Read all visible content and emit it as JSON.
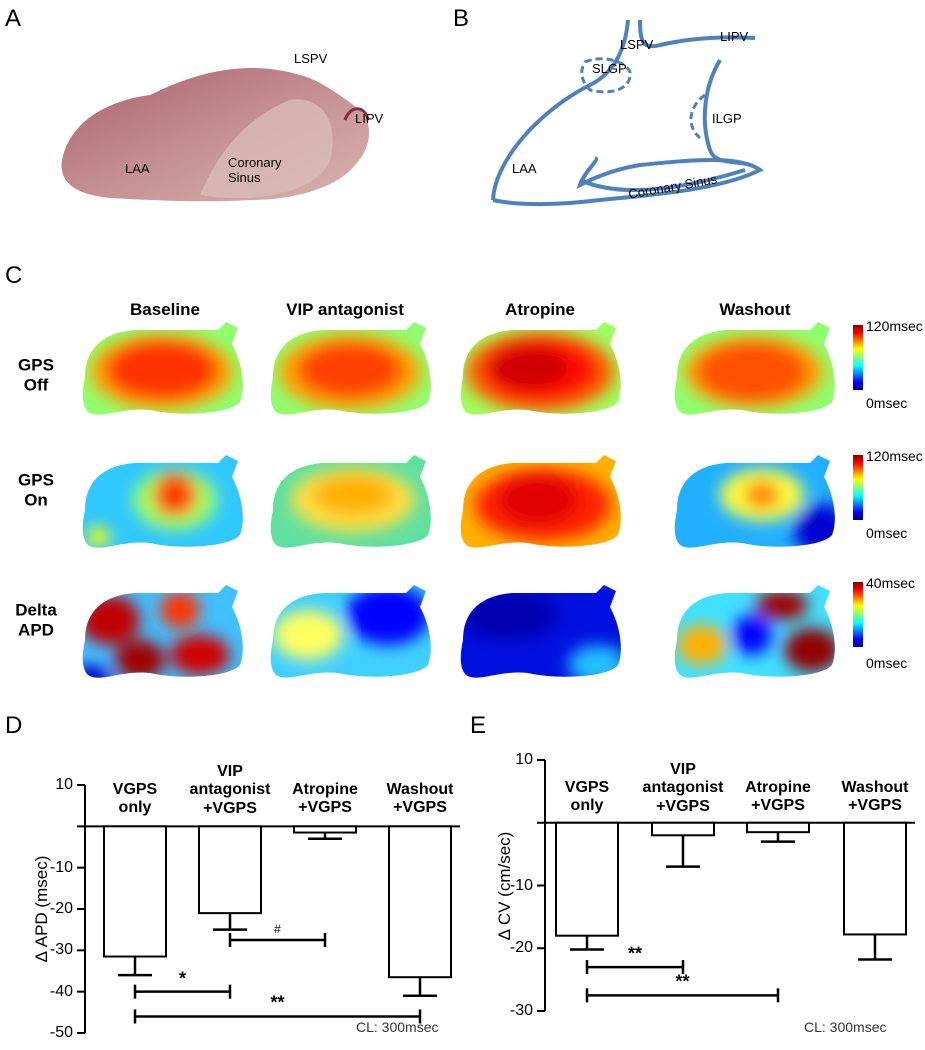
{
  "panel_letters": [
    "A",
    "B",
    "C",
    "D",
    "E"
  ],
  "panel_a": {
    "labels": [
      "LSPV",
      "LIPV",
      "LAA",
      "Coronary\nSinus"
    ]
  },
  "panel_b": {
    "labels": [
      "LSPV",
      "LIPV",
      "SLGP",
      "ILGP",
      "LAA",
      "Coronary Sinus"
    ]
  },
  "panel_c": {
    "columns": [
      "Baseline",
      "VIP antagonist",
      "Atropine",
      "Washout"
    ],
    "rows": [
      "GPS\nOff",
      "GPS\nOn",
      "Delta\nAPD"
    ],
    "colorbars": [
      {
        "top": "120msec",
        "bottom": "0msec"
      },
      {
        "top": "120msec",
        "bottom": "0msec"
      },
      {
        "top": "40msec",
        "bottom": "0msec"
      }
    ]
  },
  "chart_data": [
    {
      "type": "bar",
      "ylabel": "Δ APD (msec)",
      "categories": [
        "VGPS\nonly",
        "VIP\nantagonist\n+VGPS",
        "Atropine\n+VGPS",
        "Washout\n+VGPS"
      ],
      "values": [
        -31.5,
        -21,
        -1.5,
        -36.5
      ],
      "errors": [
        4.5,
        4,
        1.5,
        4.5
      ],
      "color": "#ffffff",
      "ylim": [
        -50,
        10
      ],
      "yticks": [
        10,
        -10,
        -20,
        -30,
        -40,
        -50
      ],
      "brackets": [
        {
          "text": "*",
          "from": 0,
          "to": 1,
          "y": -40
        },
        {
          "text": "**",
          "from": 0,
          "to": 3,
          "y": -46
        },
        {
          "text": "#",
          "from": 1,
          "to": 2,
          "y": -27.5
        }
      ],
      "annotation": "CL: 300msec"
    },
    {
      "type": "bar",
      "ylabel": "Δ CV (cm/sec)",
      "categories": [
        "VGPS\nonly",
        "VIP\nantagonist\n+VGPS",
        "Atropine\n+VGPS",
        "Washout\n+VGPS"
      ],
      "values": [
        -18,
        -2,
        -1.5,
        -17.8
      ],
      "errors": [
        2.2,
        5,
        1.5,
        4
      ],
      "color": "#ffffff",
      "ylim": [
        -30,
        10
      ],
      "yticks": [
        10,
        -10,
        -20,
        -30
      ],
      "brackets": [
        {
          "text": "**",
          "from": 0,
          "to": 1,
          "y": -23
        },
        {
          "text": "**",
          "from": 0,
          "to": 2,
          "y": -27.5
        }
      ],
      "annotation": "CL: 300msec"
    }
  ]
}
